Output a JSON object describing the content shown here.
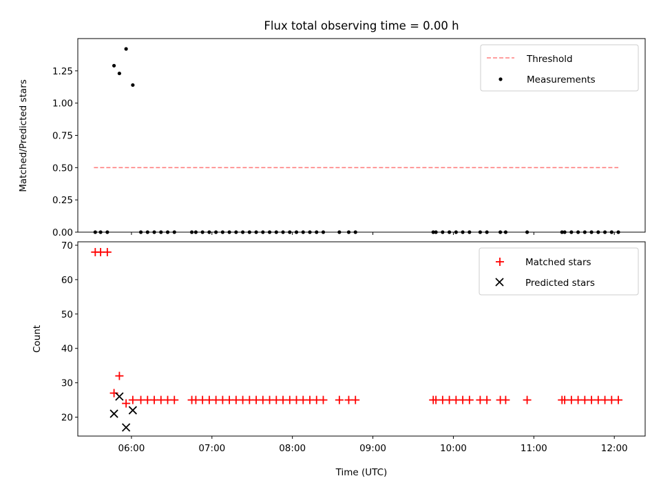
{
  "figure": {
    "title": "Flux total observing time = 0.00 h"
  },
  "chart_data": [
    {
      "type": "scatter",
      "panel": "top",
      "ylabel": "Matched/Predicted stars",
      "xlim": [
        "05:20",
        "12:23"
      ],
      "ylim": [
        0,
        1.5
      ],
      "yticks": [
        0.0,
        0.25,
        0.5,
        0.75,
        1.0,
        1.25
      ],
      "ytick_labels": [
        "0.00",
        "0.25",
        "0.50",
        "0.75",
        "1.00",
        "1.25"
      ],
      "legend_position": "top-right",
      "threshold": {
        "name": "Threshold",
        "value": 0.5,
        "x_start": "05:32",
        "x_end": "12:03",
        "color": "#ff7f7f",
        "style": "dashed"
      },
      "measurements": {
        "name": "Measurements",
        "color": "#000000",
        "points": [
          [
            "05:33",
            0
          ],
          [
            "05:37",
            0
          ],
          [
            "05:42",
            0
          ],
          [
            "05:47",
            1.29
          ],
          [
            "05:51",
            1.23
          ],
          [
            "05:56",
            1.42
          ],
          [
            "06:01",
            1.14
          ],
          [
            "06:07",
            0
          ],
          [
            "06:12",
            0
          ],
          [
            "06:17",
            0
          ],
          [
            "06:22",
            0
          ],
          [
            "06:27",
            0
          ],
          [
            "06:32",
            0
          ],
          [
            "06:45",
            0
          ],
          [
            "06:48",
            0
          ],
          [
            "06:53",
            0
          ],
          [
            "06:58",
            0
          ],
          [
            "07:03",
            0
          ],
          [
            "07:08",
            0
          ],
          [
            "07:13",
            0
          ],
          [
            "07:18",
            0
          ],
          [
            "07:23",
            0
          ],
          [
            "07:28",
            0
          ],
          [
            "07:33",
            0
          ],
          [
            "07:38",
            0
          ],
          [
            "07:43",
            0
          ],
          [
            "07:48",
            0
          ],
          [
            "07:53",
            0
          ],
          [
            "07:58",
            0
          ],
          [
            "08:03",
            0
          ],
          [
            "08:08",
            0
          ],
          [
            "08:13",
            0
          ],
          [
            "08:18",
            0
          ],
          [
            "08:23",
            0
          ],
          [
            "08:35",
            0
          ],
          [
            "08:42",
            0
          ],
          [
            "08:47",
            0
          ],
          [
            "09:45",
            0
          ],
          [
            "09:47",
            0
          ],
          [
            "09:52",
            0
          ],
          [
            "09:57",
            0
          ],
          [
            "10:02",
            0
          ],
          [
            "10:07",
            0
          ],
          [
            "10:12",
            0
          ],
          [
            "10:20",
            0
          ],
          [
            "10:25",
            0
          ],
          [
            "10:35",
            0
          ],
          [
            "10:39",
            0
          ],
          [
            "10:55",
            0
          ],
          [
            "11:21",
            0
          ],
          [
            "11:23",
            0
          ],
          [
            "11:28",
            0
          ],
          [
            "11:33",
            0
          ],
          [
            "11:38",
            0
          ],
          [
            "11:43",
            0
          ],
          [
            "11:48",
            0
          ],
          [
            "11:53",
            0
          ],
          [
            "11:58",
            0
          ],
          [
            "12:03",
            0
          ]
        ]
      }
    },
    {
      "type": "scatter",
      "panel": "bottom",
      "xlabel": "Time (UTC)",
      "ylabel": "Count",
      "xlim": [
        "05:20",
        "12:23"
      ],
      "ylim": [
        14.5,
        71
      ],
      "xticks": [
        "06:00",
        "07:00",
        "08:00",
        "09:00",
        "10:00",
        "11:00",
        "12:00"
      ],
      "yticks": [
        20,
        30,
        40,
        50,
        60,
        70
      ],
      "legend_position": "top-right",
      "series": [
        {
          "name": "Matched stars",
          "marker": "plus",
          "color": "#ff0000",
          "points": [
            [
              "05:33",
              68
            ],
            [
              "05:37",
              68
            ],
            [
              "05:42",
              68
            ],
            [
              "05:47",
              27
            ],
            [
              "05:51",
              32
            ],
            [
              "05:56",
              24
            ],
            [
              "06:01",
              25
            ],
            [
              "06:07",
              25
            ],
            [
              "06:12",
              25
            ],
            [
              "06:17",
              25
            ],
            [
              "06:22",
              25
            ],
            [
              "06:27",
              25
            ],
            [
              "06:32",
              25
            ],
            [
              "06:45",
              25
            ],
            [
              "06:48",
              25
            ],
            [
              "06:53",
              25
            ],
            [
              "06:58",
              25
            ],
            [
              "07:03",
              25
            ],
            [
              "07:08",
              25
            ],
            [
              "07:13",
              25
            ],
            [
              "07:18",
              25
            ],
            [
              "07:23",
              25
            ],
            [
              "07:28",
              25
            ],
            [
              "07:33",
              25
            ],
            [
              "07:38",
              25
            ],
            [
              "07:43",
              25
            ],
            [
              "07:48",
              25
            ],
            [
              "07:53",
              25
            ],
            [
              "07:58",
              25
            ],
            [
              "08:03",
              25
            ],
            [
              "08:08",
              25
            ],
            [
              "08:13",
              25
            ],
            [
              "08:18",
              25
            ],
            [
              "08:23",
              25
            ],
            [
              "08:35",
              25
            ],
            [
              "08:42",
              25
            ],
            [
              "08:47",
              25
            ],
            [
              "09:45",
              25
            ],
            [
              "09:47",
              25
            ],
            [
              "09:52",
              25
            ],
            [
              "09:57",
              25
            ],
            [
              "10:02",
              25
            ],
            [
              "10:07",
              25
            ],
            [
              "10:12",
              25
            ],
            [
              "10:20",
              25
            ],
            [
              "10:25",
              25
            ],
            [
              "10:35",
              25
            ],
            [
              "10:39",
              25
            ],
            [
              "10:55",
              25
            ],
            [
              "11:21",
              25
            ],
            [
              "11:23",
              25
            ],
            [
              "11:28",
              25
            ],
            [
              "11:33",
              25
            ],
            [
              "11:38",
              25
            ],
            [
              "11:43",
              25
            ],
            [
              "11:48",
              25
            ],
            [
              "11:53",
              25
            ],
            [
              "11:58",
              25
            ],
            [
              "12:03",
              25
            ]
          ]
        },
        {
          "name": "Predicted stars",
          "marker": "x",
          "color": "#000000",
          "points": [
            [
              "05:47",
              21
            ],
            [
              "05:51",
              26
            ],
            [
              "05:56",
              17
            ],
            [
              "06:01",
              22
            ]
          ]
        }
      ]
    }
  ]
}
